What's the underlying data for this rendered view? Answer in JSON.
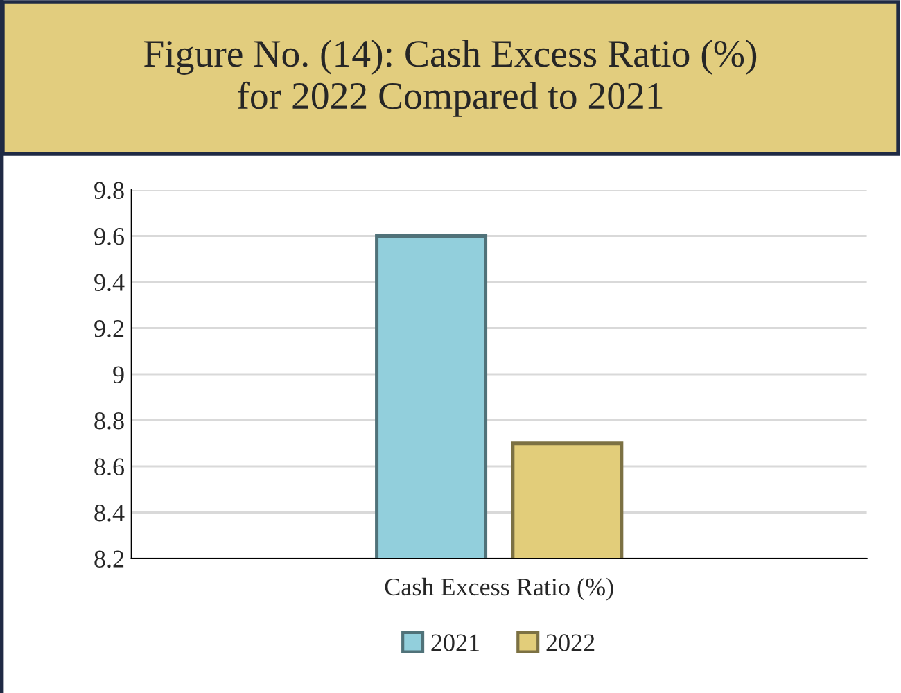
{
  "chart_data": {
    "type": "bar",
    "title": "Figure No. (14): Cash Excess Ratio (%)\nfor 2022 Compared to 2021",
    "categories": [
      "Cash Excess Ratio (%)"
    ],
    "series": [
      {
        "name": "2021",
        "color": "#92cfdc",
        "values": [
          9.6
        ]
      },
      {
        "name": "2022",
        "color": "#e2cd7a",
        "values": [
          8.7
        ]
      }
    ],
    "ylim": [
      8.2,
      9.8
    ],
    "yticks": [
      8.2,
      8.4,
      8.6,
      8.8,
      9,
      9.2,
      9.4,
      9.6,
      9.8
    ],
    "grid": "y",
    "legend": "bottom"
  }
}
